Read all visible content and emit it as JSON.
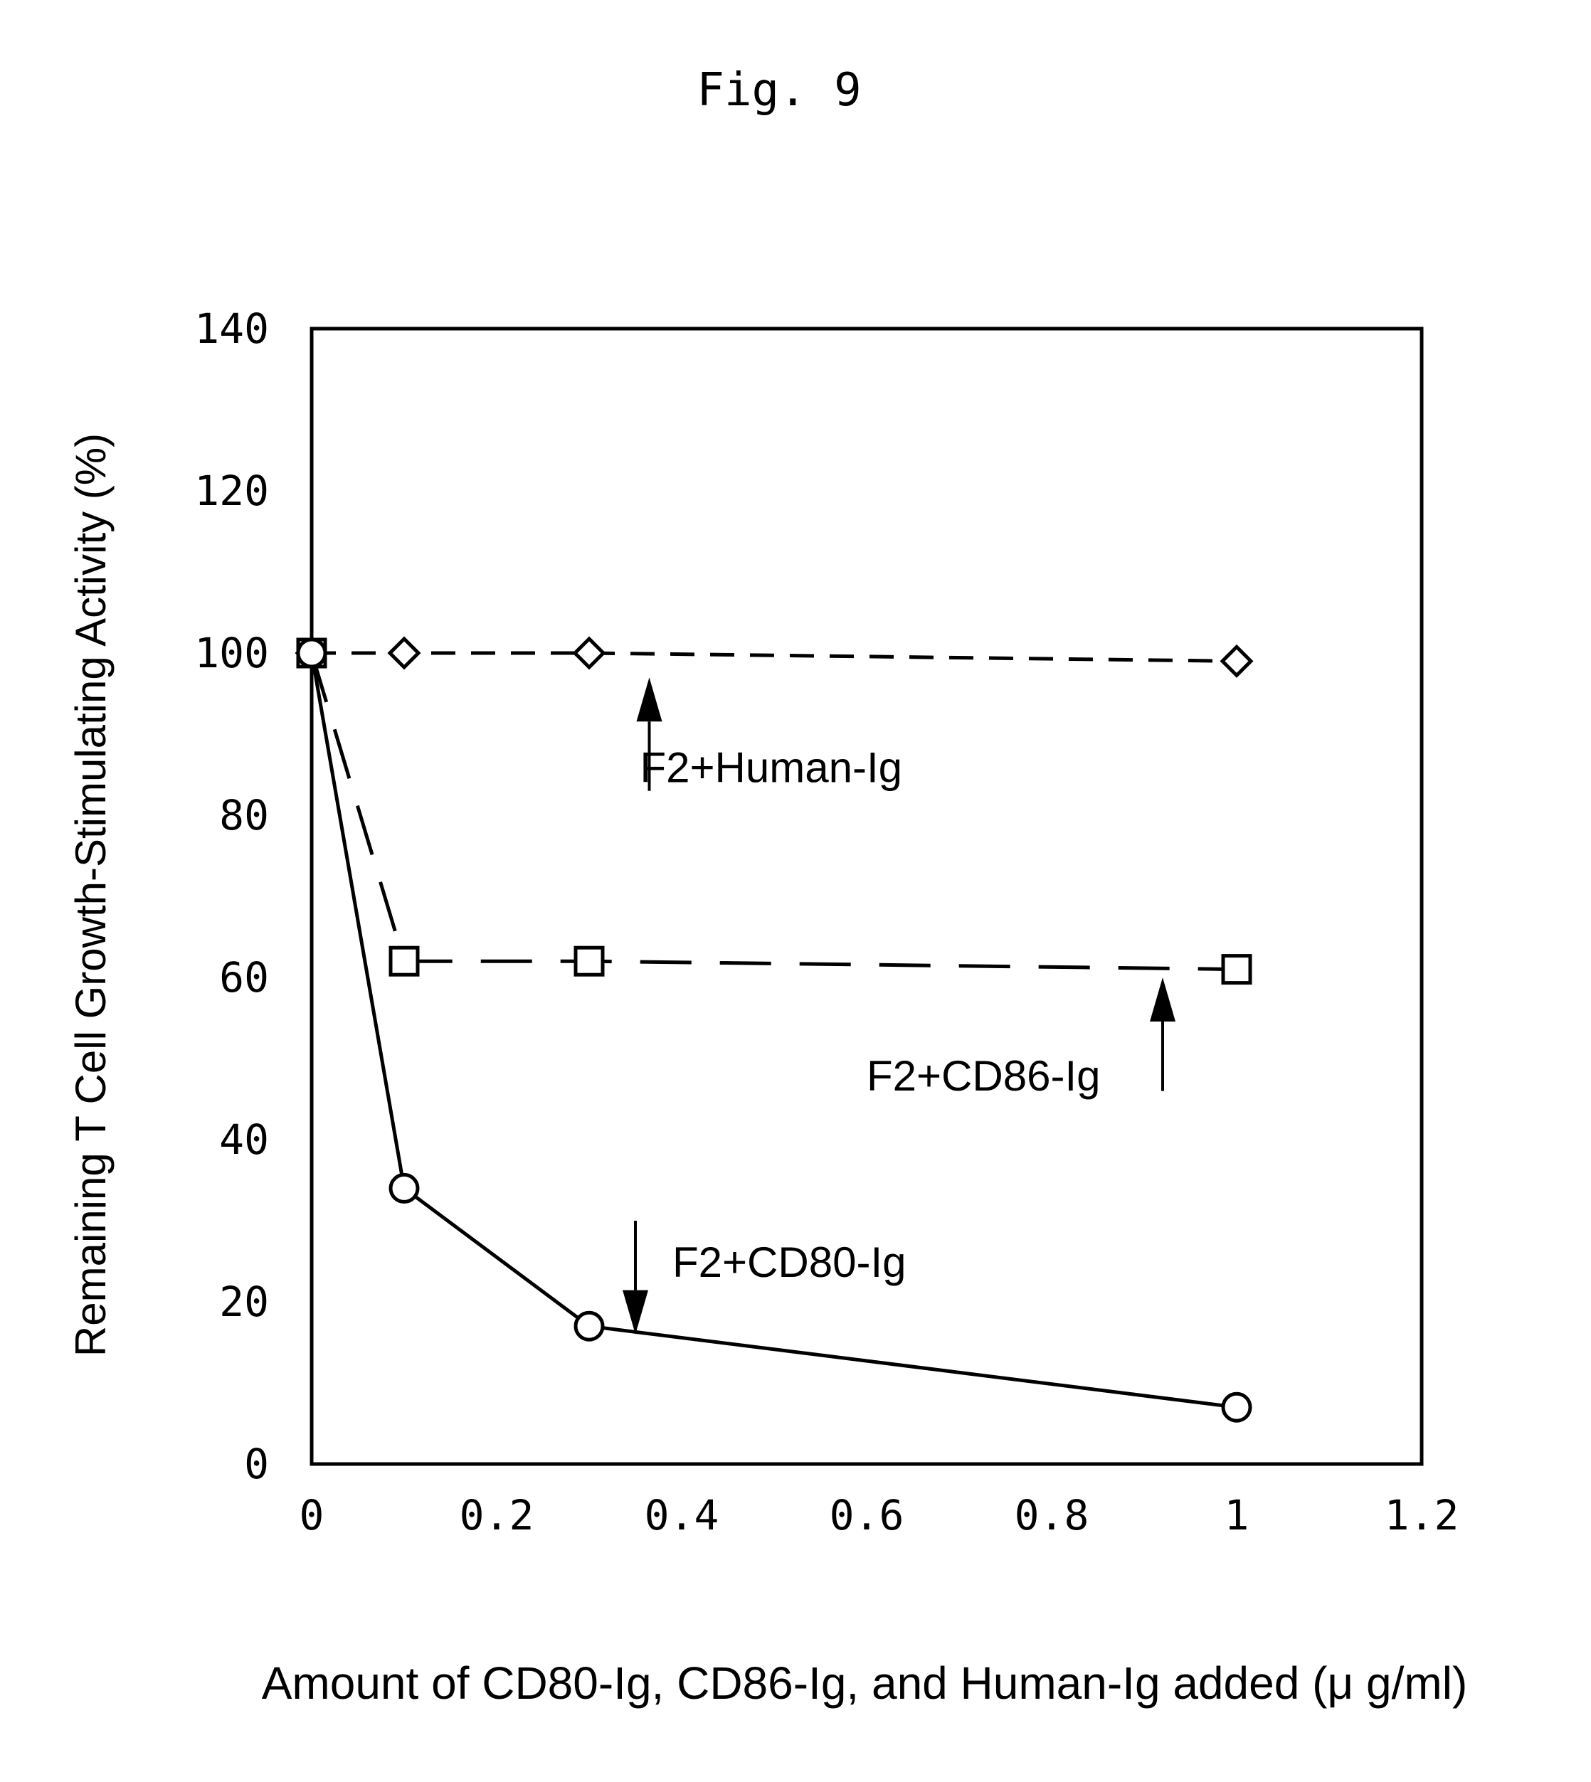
{
  "figure_label": "Fig. 9",
  "chart_data": {
    "type": "line",
    "title": "",
    "xlabel": "Amount of CD80-Ig, CD86-Ig, and Human-Ig added (μ g/ml)",
    "ylabel": "Remaining T Cell Growth-Stimulating Activity (%)",
    "xlim": [
      0,
      1.2
    ],
    "ylim": [
      0,
      140
    ],
    "xticks": [
      0,
      0.2,
      0.4,
      0.6,
      0.8,
      1,
      1.2
    ],
    "xtick_labels": [
      "0",
      "0.2",
      "0.4",
      "0.6",
      "0.8",
      "1",
      "1.2"
    ],
    "yticks": [
      0,
      20,
      40,
      60,
      80,
      100,
      120,
      140
    ],
    "ytick_labels": [
      "0",
      "20",
      "40",
      "60",
      "80",
      "100",
      "120",
      "140"
    ],
    "grid": false,
    "x": [
      0,
      0.1,
      0.3,
      1
    ],
    "series": [
      {
        "name": "F2+Human-Ig",
        "values": [
          100,
          100,
          100,
          99
        ],
        "marker": "diamond",
        "line_style": "short-dash",
        "label_anchor": {
          "x": 0.355,
          "y": 86
        },
        "arrow_direction": "up",
        "arrow_tip": {
          "x": 0.365,
          "y": 97
        },
        "arrow_tail": {
          "x": 0.365,
          "y": 83
        }
      },
      {
        "name": "F2+CD86-Ig",
        "values": [
          100,
          62,
          62,
          61
        ],
        "marker": "square",
        "line_style": "long-dash",
        "label_anchor": {
          "x": 0.6,
          "y": 48
        },
        "arrow_direction": "up",
        "arrow_tip": {
          "x": 0.92,
          "y": 60
        },
        "arrow_tail": {
          "x": 0.92,
          "y": 46
        }
      },
      {
        "name": "F2+CD80-Ig",
        "values": [
          100,
          34,
          17,
          7
        ],
        "marker": "circle",
        "line_style": "solid",
        "label_anchor": {
          "x": 0.39,
          "y": 25
        },
        "arrow_direction": "down",
        "arrow_tip": {
          "x": 0.35,
          "y": 16
        },
        "arrow_tail": {
          "x": 0.35,
          "y": 30
        }
      }
    ]
  }
}
